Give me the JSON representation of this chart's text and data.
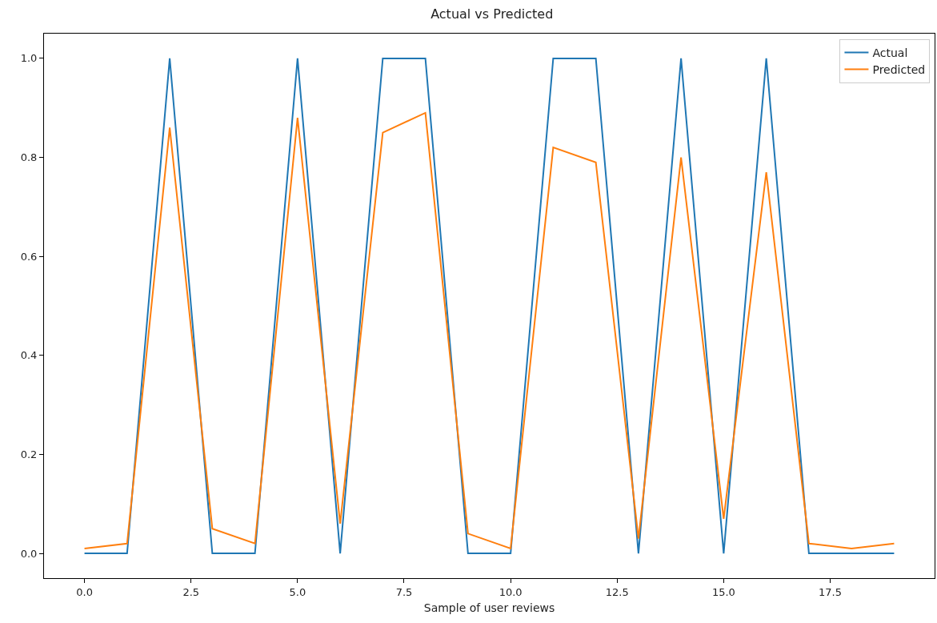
{
  "chart_data": {
    "type": "line",
    "title": "Actual vs Predicted",
    "xlabel": "Sample of user reviews",
    "x": [
      0,
      1,
      2,
      3,
      4,
      5,
      6,
      7,
      8,
      9,
      10,
      11,
      12,
      13,
      14,
      15,
      16,
      17,
      18,
      19
    ],
    "series": [
      {
        "name": "Actual",
        "color": "#1f77b4",
        "values": [
          0,
          0,
          1,
          0,
          0,
          1,
          0,
          1,
          1,
          0,
          0,
          1,
          1,
          0,
          1,
          0,
          1,
          0,
          0,
          0
        ]
      },
      {
        "name": "Predicted",
        "color": "#ff7f0e",
        "values": [
          0.01,
          0.02,
          0.86,
          0.05,
          0.02,
          0.88,
          0.06,
          0.85,
          0.89,
          0.04,
          0.01,
          0.82,
          0.79,
          0.03,
          0.8,
          0.07,
          0.77,
          0.02,
          0.01,
          0.02
        ]
      }
    ],
    "xlim": [
      -0.95,
      19.95
    ],
    "ylim": [
      -0.05,
      1.05
    ],
    "xticks": [
      {
        "value": 0,
        "label": "0.0"
      },
      {
        "value": 2.5,
        "label": "2.5"
      },
      {
        "value": 5,
        "label": "5.0"
      },
      {
        "value": 7.5,
        "label": "7.5"
      },
      {
        "value": 10,
        "label": "10.0"
      },
      {
        "value": 12.5,
        "label": "12.5"
      },
      {
        "value": 15,
        "label": "15.0"
      },
      {
        "value": 17.5,
        "label": "17.5"
      }
    ],
    "yticks": [
      {
        "value": 0,
        "label": "0.0"
      },
      {
        "value": 0.2,
        "label": "0.2"
      },
      {
        "value": 0.4,
        "label": "0.4"
      },
      {
        "value": 0.6,
        "label": "0.6"
      },
      {
        "value": 0.8,
        "label": "0.8"
      },
      {
        "value": 1,
        "label": "1.0"
      }
    ],
    "grid": false,
    "legend": "top right",
    "marker": "none",
    "line_style": "solid"
  }
}
